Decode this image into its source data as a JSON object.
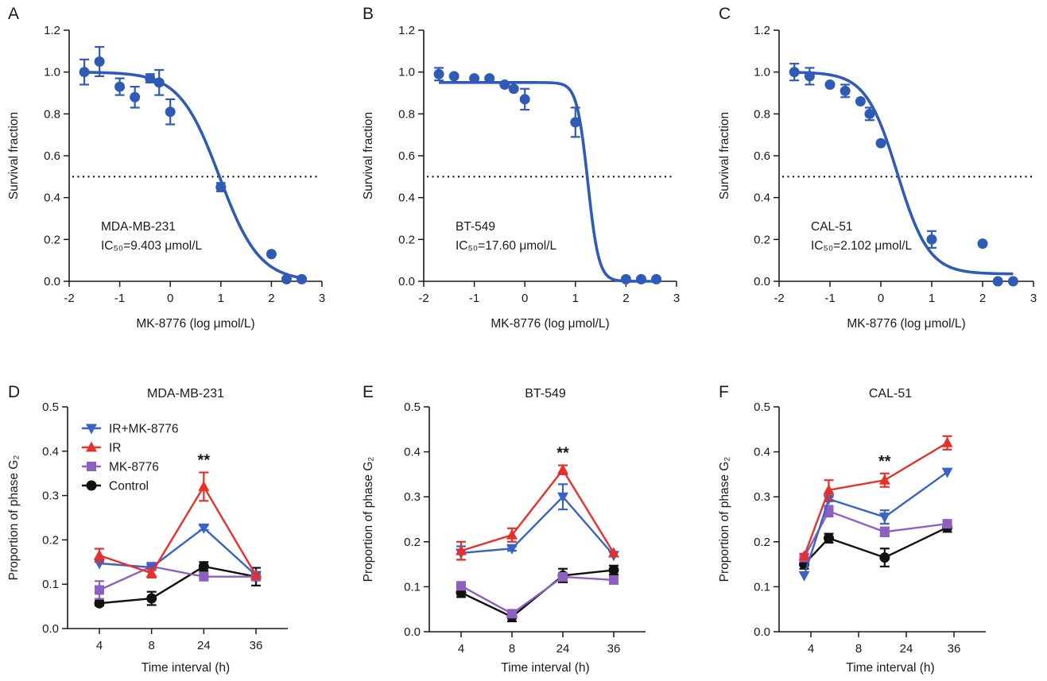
{
  "colors": {
    "curve": "#2f5bb7",
    "ir_mk": "#3a62c4",
    "ir": "#e8302a",
    "mk": "#8d5fc0",
    "control": "#111111",
    "axis": "#1a1a1a"
  },
  "legend": [
    "IR+MK-8776",
    "IR",
    "MK-8776",
    "Control"
  ],
  "chart_data": [
    {
      "type": "scatter",
      "panel_label": "A",
      "title": "",
      "xlabel": "MK-8776 (log μmol/L)",
      "ylabel": "Survival fraction",
      "xlim": [
        -2,
        3
      ],
      "ylim": [
        0,
        1.2
      ],
      "xticks": [
        "-2",
        "-1",
        "0",
        "1",
        "2",
        "3"
      ],
      "yticks": [
        "0.0",
        "0.2",
        "0.4",
        "0.6",
        "0.8",
        "1.0",
        "1.2"
      ],
      "annotation_line1": "MDA-MB-231",
      "annotation_line2": "IC₅₀=9.403 μmol/L",
      "reference_line_y": 0.5,
      "ic50_log": 0.973,
      "fit": {
        "top": 1.0,
        "bottom": 0.0,
        "hill": 1.1
      },
      "points": [
        {
          "x": -1.7,
          "y": 1.0,
          "err": 0.06
        },
        {
          "x": -1.4,
          "y": 1.05,
          "err": 0.07
        },
        {
          "x": -1.0,
          "y": 0.93,
          "err": 0.04
        },
        {
          "x": -0.7,
          "y": 0.88,
          "err": 0.05
        },
        {
          "x": -0.4,
          "y": 0.97,
          "err": 0.02
        },
        {
          "x": -0.22,
          "y": 0.95,
          "err": 0.06
        },
        {
          "x": 0.0,
          "y": 0.81,
          "err": 0.06
        },
        {
          "x": 1.0,
          "y": 0.45,
          "err": 0.02
        },
        {
          "x": 2.0,
          "y": 0.13,
          "err": 0.0
        },
        {
          "x": 2.3,
          "y": 0.01,
          "err": 0.0
        },
        {
          "x": 2.6,
          "y": 0.01,
          "err": 0.0
        }
      ]
    },
    {
      "type": "scatter",
      "panel_label": "B",
      "title": "",
      "xlabel": "MK-8776 (log μmol/L)",
      "ylabel": "Survival fraction",
      "xlim": [
        -2,
        3
      ],
      "ylim": [
        0,
        1.2
      ],
      "xticks": [
        "-2",
        "-1",
        "0",
        "1",
        "2",
        "3"
      ],
      "yticks": [
        "0.0",
        "0.2",
        "0.4",
        "0.6",
        "0.8",
        "1.0",
        "1.2"
      ],
      "annotation_line1": "BT-549",
      "annotation_line2": "IC₅₀=17.60 μmol/L",
      "reference_line_y": 0.5,
      "ic50_log": 1.245,
      "fit": {
        "top": 0.95,
        "bottom": 0.0,
        "hill": 4.0
      },
      "points": [
        {
          "x": -1.7,
          "y": 0.99,
          "err": 0.03
        },
        {
          "x": -1.4,
          "y": 0.98,
          "err": 0.0
        },
        {
          "x": -1.0,
          "y": 0.97,
          "err": 0.0
        },
        {
          "x": -0.7,
          "y": 0.97,
          "err": 0.0
        },
        {
          "x": -0.4,
          "y": 0.94,
          "err": 0.0
        },
        {
          "x": -0.22,
          "y": 0.92,
          "err": 0.0
        },
        {
          "x": 0.0,
          "y": 0.87,
          "err": 0.05
        },
        {
          "x": 1.0,
          "y": 0.76,
          "err": 0.07
        },
        {
          "x": 2.0,
          "y": 0.01,
          "err": 0.0
        },
        {
          "x": 2.3,
          "y": 0.01,
          "err": 0.0
        },
        {
          "x": 2.6,
          "y": 0.01,
          "err": 0.0
        }
      ]
    },
    {
      "type": "scatter",
      "panel_label": "C",
      "title": "",
      "xlabel": "MK-8776 (log μmol/L)",
      "ylabel": "Survival fraction",
      "xlim": [
        -2,
        3
      ],
      "ylim": [
        0,
        1.2
      ],
      "xticks": [
        "-2",
        "-1",
        "0",
        "1",
        "2",
        "3"
      ],
      "yticks": [
        "0.0",
        "0.2",
        "0.4",
        "0.6",
        "0.8",
        "1.0",
        "1.2"
      ],
      "annotation_line1": "CAL-51",
      "annotation_line2": "IC₅₀=2.102 μmol/L",
      "reference_line_y": 0.5,
      "ic50_log": 0.323,
      "fit": {
        "top": 1.0,
        "bottom": 0.035,
        "hill": 1.4
      },
      "points": [
        {
          "x": -1.7,
          "y": 1.0,
          "err": 0.04
        },
        {
          "x": -1.4,
          "y": 0.98,
          "err": 0.04
        },
        {
          "x": -1.0,
          "y": 0.94,
          "err": 0.0
        },
        {
          "x": -0.7,
          "y": 0.91,
          "err": 0.03
        },
        {
          "x": -0.4,
          "y": 0.86,
          "err": 0.0
        },
        {
          "x": -0.22,
          "y": 0.8,
          "err": 0.03
        },
        {
          "x": 0.0,
          "y": 0.66,
          "err": 0.0
        },
        {
          "x": 1.0,
          "y": 0.2,
          "err": 0.04
        },
        {
          "x": 2.0,
          "y": 0.18,
          "err": 0.0
        },
        {
          "x": 2.3,
          "y": 0.0,
          "err": 0.0
        },
        {
          "x": 2.6,
          "y": 0.0,
          "err": 0.0
        }
      ]
    },
    {
      "type": "line",
      "panel_label": "D",
      "title": "MDA-MB-231",
      "xlabel": "Time interval (h)",
      "ylabel": "Proportion of phase G₂",
      "categories": [
        "4",
        "8",
        "24",
        "36"
      ],
      "x_positions": [
        4,
        8,
        24,
        36
      ],
      "xlim": [
        2,
        39
      ],
      "ylim": [
        0,
        0.5
      ],
      "yticks": [
        "0.0",
        "0.1",
        "0.2",
        "0.3",
        "0.4",
        "0.5"
      ],
      "significance": {
        "label": "**",
        "at": "24"
      },
      "series": [
        {
          "name": "IR+MK-8776",
          "color_key": "ir_mk",
          "marker": "triangle-down",
          "values": [
            0.147,
            0.138,
            0.227,
            0.12
          ],
          "errors": [
            0.0,
            0.0,
            0.005,
            0.0
          ]
        },
        {
          "name": "IR",
          "color_key": "ir",
          "marker": "triangle-up",
          "values": [
            0.165,
            0.125,
            0.32,
            0.12
          ],
          "errors": [
            0.015,
            0.01,
            0.032,
            0.0
          ]
        },
        {
          "name": "MK-8776",
          "color_key": "mk",
          "marker": "square",
          "values": [
            0.087,
            0.14,
            0.117,
            0.117
          ],
          "errors": [
            0.02,
            0.005,
            0.005,
            0.0
          ]
        },
        {
          "name": "Control",
          "color_key": "control",
          "marker": "circle",
          "values": [
            0.057,
            0.068,
            0.14,
            0.117
          ],
          "errors": [
            0.005,
            0.015,
            0.01,
            0.02
          ]
        }
      ]
    },
    {
      "type": "line",
      "panel_label": "E",
      "title": "BT-549",
      "xlabel": "Time interval (h)",
      "ylabel": "Proportion of phase G₂",
      "categories": [
        "4",
        "8",
        "24",
        "36"
      ],
      "x_positions": [
        4,
        8,
        24,
        36
      ],
      "xlim": [
        2,
        39
      ],
      "ylim": [
        0,
        0.5
      ],
      "yticks": [
        "0.0",
        "0.1",
        "0.2",
        "0.3",
        "0.4",
        "0.5"
      ],
      "significance": {
        "label": "**",
        "at": "24"
      },
      "series": [
        {
          "name": "IR+MK-8776",
          "color_key": "ir_mk",
          "marker": "triangle-down",
          "values": [
            0.175,
            0.185,
            0.3,
            0.17
          ],
          "errors": [
            0.015,
            0.005,
            0.028,
            0.0
          ]
        },
        {
          "name": "IR",
          "color_key": "ir",
          "marker": "triangle-up",
          "values": [
            0.18,
            0.215,
            0.36,
            0.175
          ],
          "errors": [
            0.02,
            0.015,
            0.01,
            0.0
          ]
        },
        {
          "name": "MK-8776",
          "color_key": "mk",
          "marker": "square",
          "values": [
            0.102,
            0.04,
            0.122,
            0.115
          ],
          "errors": [
            0.005,
            0.005,
            0.005,
            0.005
          ]
        },
        {
          "name": "Control",
          "color_key": "control",
          "marker": "circle",
          "values": [
            0.087,
            0.033,
            0.125,
            0.137
          ],
          "errors": [
            0.01,
            0.01,
            0.015,
            0.01
          ]
        }
      ]
    },
    {
      "type": "line",
      "panel_label": "F",
      "title": "CAL-51",
      "xlabel": "Time interval (h)",
      "ylabel": "Proportion of phase G₂",
      "categories": [
        "4",
        "8",
        "24",
        "36"
      ],
      "x_positions": [
        4,
        8,
        24,
        36
      ],
      "data_x": [
        2.5,
        8,
        20.5,
        34.5
      ],
      "xlim": [
        0,
        39
      ],
      "ylim": [
        0,
        0.5
      ],
      "yticks": [
        "0.0",
        "0.1",
        "0.2",
        "0.3",
        "0.4",
        "0.5"
      ],
      "significance": {
        "label": "**",
        "at": "24"
      },
      "series": [
        {
          "name": "IR+MK-8776",
          "color_key": "ir_mk",
          "marker": "triangle-down",
          "values": [
            0.125,
            0.295,
            0.255,
            0.355
          ],
          "errors": [
            0.0,
            0.005,
            0.015,
            0.0
          ]
        },
        {
          "name": "IR",
          "color_key": "ir",
          "marker": "triangle-up",
          "values": [
            0.168,
            0.315,
            0.337,
            0.42
          ],
          "errors": [
            0.005,
            0.022,
            0.015,
            0.015
          ]
        },
        {
          "name": "MK-8776",
          "color_key": "mk",
          "marker": "square",
          "values": [
            0.165,
            0.268,
            0.222,
            0.24
          ],
          "errors": [
            0.0,
            0.012,
            0.01,
            0.005
          ]
        },
        {
          "name": "Control",
          "color_key": "control",
          "marker": "circle",
          "values": [
            0.15,
            0.208,
            0.165,
            0.232
          ],
          "errors": [
            0.01,
            0.01,
            0.02,
            0.01
          ]
        }
      ]
    }
  ]
}
